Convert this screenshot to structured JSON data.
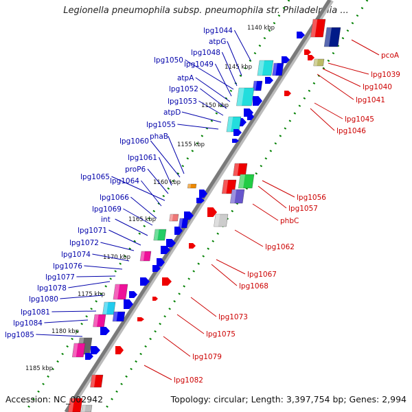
{
  "title": "Legionella pneumophila subsp. pneumophila str. Philadelphia ...",
  "footer": {
    "accession": "Accession: NC_002942",
    "summary": "Topology: circular; Length: 3,397,754 bp; Genes: 2,994"
  },
  "kbp_ticks": [
    "1140 kbp",
    "1145 kbp",
    "1150 kbp",
    "1155 kbp",
    "1160 kbp",
    "1165 kbp",
    "1170 kbp",
    "1175 kbp",
    "1180 kbp",
    "1185 kbp"
  ],
  "left_labels": [
    "lpg1044",
    "atpG",
    "lpg1048",
    "lpg1050",
    "lpg1049",
    "atpA",
    "lpg1052",
    "lpg1053",
    "atpD",
    "lpg1055",
    "phaB",
    "lpg1060",
    "lpg1061",
    "proP6",
    "lpg1065",
    "lpg1064",
    "lpg1066",
    "lpg1069",
    "int",
    "lpg1071",
    "lpg1072",
    "lpg1074",
    "lpg1076",
    "lpg1077",
    "lpg1078",
    "lpg1080",
    "lpg1081",
    "lpg1084",
    "lpg1085"
  ],
  "right_labels": [
    "pcoA",
    "lpg1039",
    "lpg1040",
    "lpg1041",
    "lpg1045",
    "lpg1046",
    "lpg1056",
    "lpg1057",
    "phbC",
    "lpg1062",
    "lpg1067",
    "lpg1068",
    "lpg1073",
    "lpg1075",
    "lpg1079",
    "lpg1082"
  ],
  "colors": {
    "backbone": "#808080",
    "forward_gene": "#0000ee",
    "reverse_gene": "#ee0000",
    "tick_dots": "#008000",
    "left_label": "#0000aa",
    "right_label": "#cc0000"
  }
}
